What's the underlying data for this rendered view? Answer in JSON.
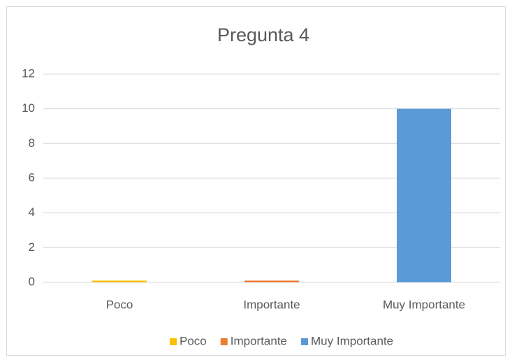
{
  "chart_data": {
    "type": "bar",
    "title": "Pregunta 4",
    "categories": [
      "Poco",
      "Importante",
      "Muy Importante"
    ],
    "values": [
      0.1,
      0.1,
      10
    ],
    "colors": [
      "#ffc000",
      "#ed7d31",
      "#5b9bd5"
    ],
    "ylim": [
      0,
      12
    ],
    "yticks": [
      0,
      2,
      4,
      6,
      8,
      10,
      12
    ],
    "grid": true,
    "legend": "bottom"
  }
}
